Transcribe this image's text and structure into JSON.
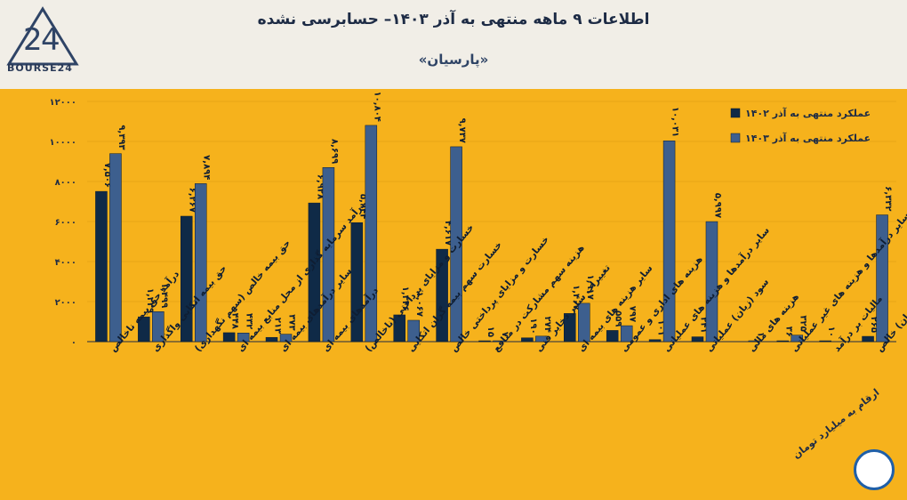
{
  "header": {
    "title": "اطلاعات ۹ ماهه منتهی به آذر ۱۴۰۳– حسابرسی نشده",
    "subtitle": "«پارسیان»",
    "logo_text": "BOURSE24"
  },
  "note": "ارقام به میلیارد تومان",
  "colors": {
    "series_1402": "#0f2a47",
    "series_1403": "#3d5f8e",
    "panel": "#f6b21c"
  },
  "chart_data": {
    "type": "bar",
    "ylim": [
      0,
      12000
    ],
    "yticks": [
      "۰",
      "۲۰۰۰",
      "۴۰۰۰",
      "۶۰۰۰",
      "۸۰۰۰",
      "۱۰۰۰۰",
      "۱۲۰۰۰"
    ],
    "categories": [
      "درآمد حق بیمه ناخالص",
      "حق بیمه اتکایی واگذاری",
      "حق بیمه خالص (سهم نگهداری)",
      "درآمد سرمایه گذاری از محل منابع بیمه ای",
      "سایر درآمدهای بیمه ای",
      "درآمدهای بیمه ای",
      "خسارت و مزایای پرداختی (ناخالص)",
      "خسارت سهم بیمه گران اتکایی",
      "خسارت و مزایای پرداختی خالص",
      "هزینه سهم مشارکت در منافع",
      "تغییرات سایر ذخایر فنی",
      "سایر هزینه های بیمه ای",
      "هزینه های اداری و عمومی",
      "سایر درآمدها و هزینه های عملیاتی",
      "سود (زیان) عملیاتی",
      "هزینه های مالی",
      "سایر درآمدها و هزینه های غیر عملیاتی",
      "مالیات بر درآمد",
      "سود (زیان) خالص"
    ],
    "series": [
      {
        "name": "عملکرد منتهی به آذر ۱۴۰۲",
        "values": [
          7506,
          1239,
          6267,
          448,
          213,
          6928,
          5944,
          1336,
          4617,
          15,
          190,
          1407,
          559,
          101,
          241,
          null,
          36,
          10,
          265
        ],
        "labels": [
          "۷,۵۰۶",
          "۱,۲۳۹",
          "۶,۲۶۷",
          "۴۴۸",
          "۲۱۳",
          "۶,۹۲۸",
          "۵,۹۴۴",
          "۱,۳۳۶",
          "۴,۶۱۷",
          "۱۵",
          "۱۹۰",
          "۱,۴۰۷",
          "۵۵۹",
          "۱۰۱",
          "۲۴۱",
          "",
          "۳۶",
          "۱۰",
          "۲۶۵"
        ]
      },
      {
        "name": "عملکرد منتهی به آذر ۱۴۰۳",
        "values": [
          9393,
          1499,
          7894,
          432,
          373,
          8699,
          10804,
          1067,
          9737,
          7,
          274,
          1917,
          797,
          10031,
          5997,
          1,
          325,
          null,
          6332
        ],
        "labels": [
          "۹,۳۹۳",
          "۱,۴۹۹",
          "۷,۸۹۴",
          "۴۳۲",
          "۳۷۳",
          "۸,۶۹۹",
          "۱۰,۸۰۴",
          "۱,۰۶۷",
          "۹,۷۳۷",
          "۷",
          "۲۷۴",
          "۱,۹۱۷",
          "۷۹۷",
          "۱۰,۰۳۱",
          "۵,۹۹۷",
          "۱",
          "۳۲۵",
          "",
          "۶,۳۳۲"
        ]
      }
    ]
  }
}
